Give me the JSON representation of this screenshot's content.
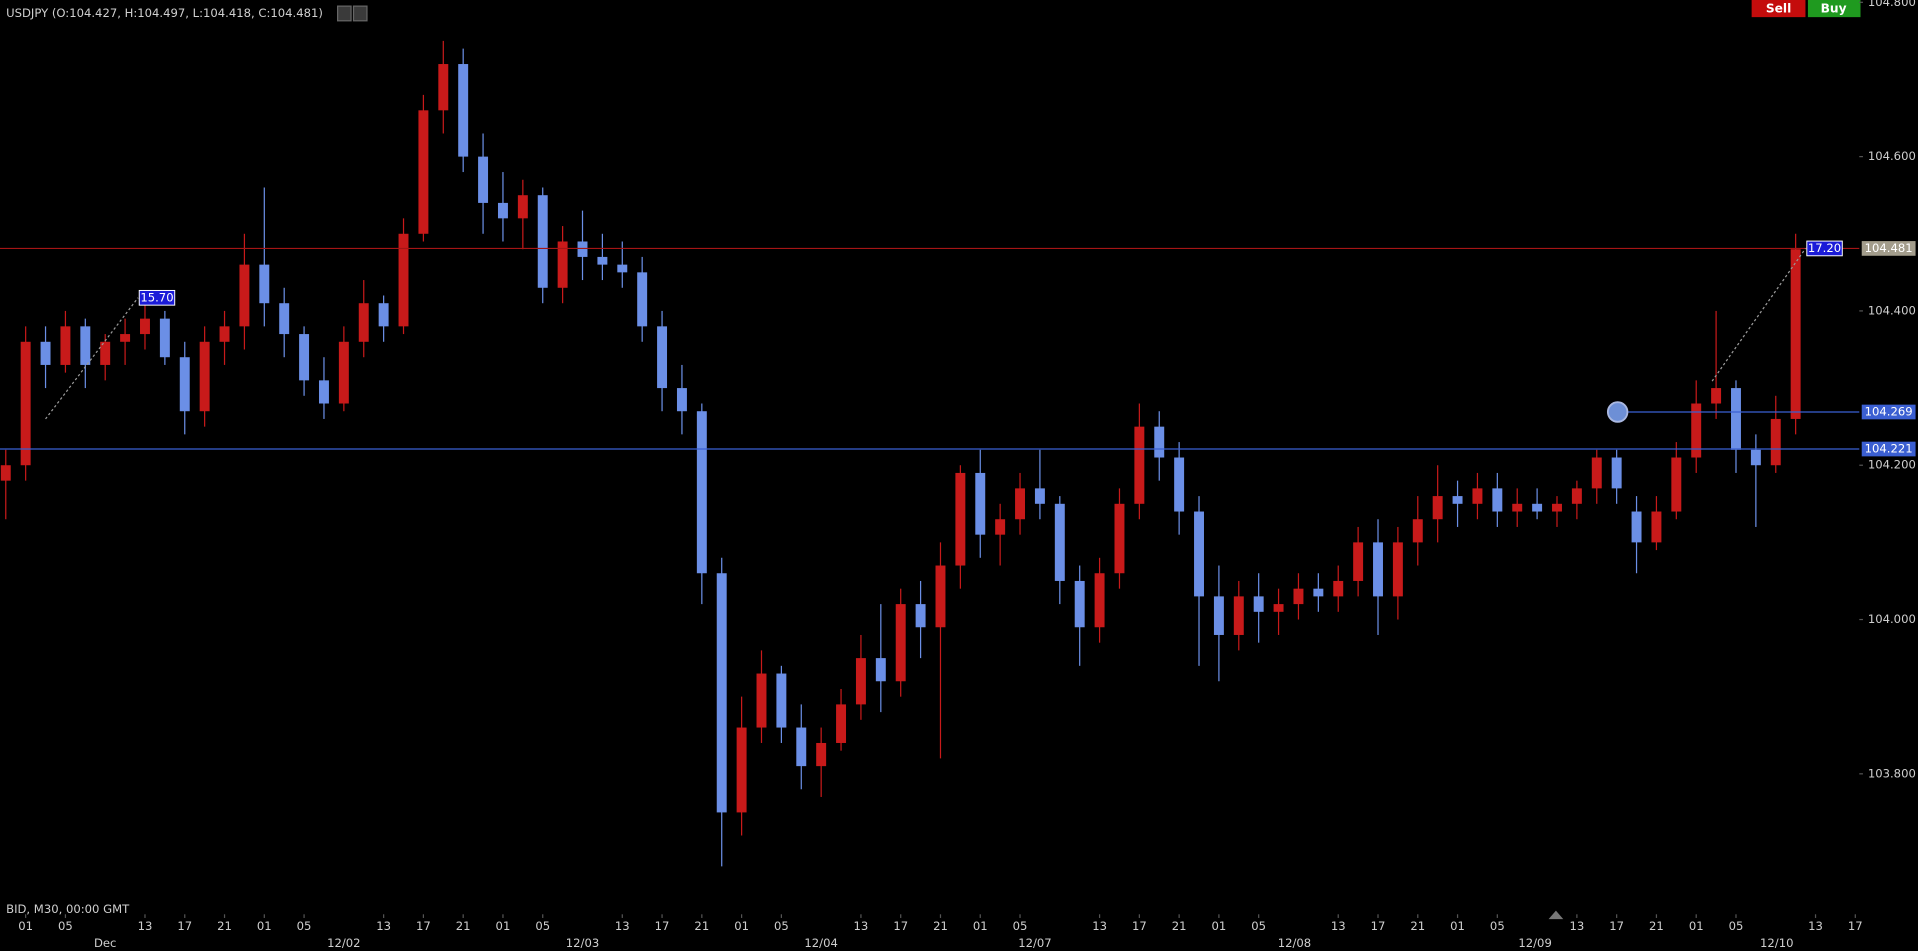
{
  "chart_data": {
    "type": "candlestick",
    "title": "USDJPY (O:104.427, H:104.497, L:104.418, C:104.481)",
    "footnote": "BID, M30, 00:00 GMT",
    "buttons": [
      "Sell",
      "Buy"
    ],
    "up_color": "#c81a1a",
    "down_color": "#6b8fe6",
    "x": [
      -1,
      1,
      3,
      5,
      7,
      9,
      11,
      13,
      15,
      17,
      19,
      21,
      23,
      25,
      27,
      29,
      31,
      33,
      35,
      37,
      39,
      41,
      43,
      45,
      47,
      49,
      51,
      53,
      55,
      57,
      59,
      61,
      63,
      65,
      67,
      69,
      71,
      73,
      75,
      77,
      79,
      81,
      83,
      85,
      87,
      89,
      91,
      93,
      95,
      97,
      99,
      101,
      103,
      105,
      107,
      109,
      111,
      113,
      115,
      117,
      119,
      121,
      123,
      125,
      127,
      129,
      131,
      133,
      135,
      137,
      139,
      141,
      143,
      145,
      147,
      149,
      151,
      153,
      155,
      157,
      159,
      161,
      163,
      165,
      167,
      169,
      171,
      173,
      175,
      177,
      179
    ],
    "open": [
      104.18,
      104.2,
      104.36,
      104.33,
      104.38,
      104.33,
      104.36,
      104.37,
      104.39,
      104.34,
      104.27,
      104.36,
      104.38,
      104.46,
      104.41,
      104.37,
      104.31,
      104.28,
      104.36,
      104.41,
      104.38,
      104.5,
      104.66,
      104.72,
      104.6,
      104.54,
      104.52,
      104.55,
      104.43,
      104.49,
      104.47,
      104.46,
      104.45,
      104.38,
      104.3,
      104.27,
      104.06,
      103.75,
      103.86,
      103.93,
      103.86,
      103.81,
      103.84,
      103.89,
      103.95,
      103.92,
      104.02,
      103.99,
      104.07,
      104.19,
      104.11,
      104.13,
      104.17,
      104.15,
      104.05,
      103.99,
      104.06,
      104.15,
      104.25,
      104.21,
      104.14,
      104.03,
      103.98,
      104.03,
      104.01,
      104.02,
      104.04,
      104.03,
      104.05,
      104.1,
      104.03,
      104.1,
      104.13,
      104.16,
      104.15,
      104.17,
      104.14,
      104.15,
      104.14,
      104.15,
      104.17,
      104.21,
      104.14,
      104.1,
      104.14,
      104.21,
      104.28,
      104.3,
      104.22,
      104.2,
      104.26
    ],
    "high": [
      104.22,
      104.38,
      104.38,
      104.4,
      104.39,
      104.37,
      104.39,
      104.42,
      104.4,
      104.36,
      104.38,
      104.4,
      104.5,
      104.56,
      104.43,
      104.38,
      104.34,
      104.38,
      104.44,
      104.42,
      104.52,
      104.68,
      104.75,
      104.74,
      104.63,
      104.58,
      104.57,
      104.56,
      104.51,
      104.53,
      104.5,
      104.49,
      104.47,
      104.4,
      104.33,
      104.28,
      104.08,
      103.9,
      103.96,
      103.94,
      103.89,
      103.86,
      103.91,
      103.98,
      104.02,
      104.04,
      104.05,
      104.1,
      104.2,
      104.22,
      104.15,
      104.19,
      104.22,
      104.16,
      104.07,
      104.08,
      104.17,
      104.28,
      104.27,
      104.23,
      104.16,
      104.07,
      104.05,
      104.06,
      104.04,
      104.06,
      104.06,
      104.07,
      104.12,
      104.13,
      104.12,
      104.16,
      104.2,
      104.18,
      104.19,
      104.19,
      104.17,
      104.17,
      104.16,
      104.18,
      104.22,
      104.22,
      104.16,
      104.16,
      104.23,
      104.31,
      104.4,
      104.31,
      104.24,
      104.29,
      104.5
    ],
    "low": [
      104.13,
      104.18,
      104.3,
      104.32,
      104.3,
      104.31,
      104.33,
      104.35,
      104.33,
      104.24,
      104.25,
      104.33,
      104.35,
      104.38,
      104.34,
      104.29,
      104.26,
      104.27,
      104.34,
      104.36,
      104.37,
      104.49,
      104.63,
      104.58,
      104.5,
      104.49,
      104.48,
      104.41,
      104.41,
      104.44,
      104.44,
      104.43,
      104.36,
      104.27,
      104.24,
      104.02,
      103.68,
      103.72,
      103.84,
      103.84,
      103.78,
      103.77,
      103.83,
      103.87,
      103.88,
      103.9,
      103.95,
      103.82,
      104.04,
      104.08,
      104.07,
      104.11,
      104.13,
      104.02,
      103.94,
      103.97,
      104.04,
      104.13,
      104.18,
      104.11,
      103.94,
      103.92,
      103.96,
      103.97,
      103.98,
      104.0,
      104.01,
      104.01,
      104.03,
      103.98,
      104.0,
      104.07,
      104.1,
      104.12,
      104.13,
      104.12,
      104.12,
      104.13,
      104.12,
      104.13,
      104.15,
      104.15,
      104.06,
      104.09,
      104.13,
      104.19,
      104.26,
      104.19,
      104.12,
      104.19,
      104.24
    ],
    "close": [
      104.2,
      104.36,
      104.33,
      104.38,
      104.33,
      104.36,
      104.37,
      104.39,
      104.34,
      104.27,
      104.36,
      104.38,
      104.46,
      104.41,
      104.37,
      104.31,
      104.28,
      104.36,
      104.41,
      104.38,
      104.5,
      104.66,
      104.72,
      104.6,
      104.54,
      104.52,
      104.55,
      104.43,
      104.49,
      104.47,
      104.46,
      104.45,
      104.38,
      104.3,
      104.27,
      104.06,
      103.75,
      103.86,
      103.93,
      103.86,
      103.81,
      103.84,
      103.89,
      103.95,
      103.92,
      104.02,
      103.99,
      104.07,
      104.19,
      104.11,
      104.13,
      104.17,
      104.15,
      104.05,
      103.99,
      104.06,
      104.15,
      104.25,
      104.21,
      104.14,
      104.03,
      103.98,
      104.03,
      104.01,
      104.02,
      104.04,
      104.03,
      104.05,
      104.1,
      104.03,
      104.1,
      104.13,
      104.16,
      104.15,
      104.17,
      104.14,
      104.15,
      104.14,
      104.15,
      104.17,
      104.21,
      104.17,
      104.1,
      104.14,
      104.21,
      104.28,
      104.3,
      104.22,
      104.2,
      104.26,
      104.48
    ],
    "xlim": [
      -1.58,
      185.4
    ],
    "ylim": [
      103.637,
      104.803
    ],
    "xticks": [
      {
        "value": 1,
        "label": "01"
      },
      {
        "value": 5,
        "label": "05"
      },
      {
        "value": 13,
        "label": "13"
      },
      {
        "value": 17,
        "label": "17"
      },
      {
        "value": 21,
        "label": "21"
      },
      {
        "value": 25,
        "label": "01"
      },
      {
        "value": 29,
        "label": "05"
      },
      {
        "value": 37,
        "label": "13"
      },
      {
        "value": 41,
        "label": "17"
      },
      {
        "value": 45,
        "label": "21"
      },
      {
        "value": 49,
        "label": "01"
      },
      {
        "value": 53,
        "label": "05"
      },
      {
        "value": 61,
        "label": "13"
      },
      {
        "value": 65,
        "label": "17"
      },
      {
        "value": 69,
        "label": "21"
      },
      {
        "value": 73,
        "label": "01"
      },
      {
        "value": 77,
        "label": "05"
      },
      {
        "value": 85,
        "label": "13"
      },
      {
        "value": 89,
        "label": "17"
      },
      {
        "value": 93,
        "label": "21"
      },
      {
        "value": 97,
        "label": "01"
      },
      {
        "value": 101,
        "label": "05"
      },
      {
        "value": 109,
        "label": "13"
      },
      {
        "value": 113,
        "label": "17"
      },
      {
        "value": 117,
        "label": "21"
      },
      {
        "value": 121,
        "label": "01"
      },
      {
        "value": 125,
        "label": "05"
      },
      {
        "value": 133,
        "label": "13"
      },
      {
        "value": 137,
        "label": "17"
      },
      {
        "value": 141,
        "label": "21"
      },
      {
        "value": 145,
        "label": "01"
      },
      {
        "value": 149,
        "label": "05"
      },
      {
        "value": 157,
        "label": "13"
      },
      {
        "value": 161,
        "label": "17"
      },
      {
        "value": 165,
        "label": "21"
      },
      {
        "value": 169,
        "label": "01"
      },
      {
        "value": 173,
        "label": "05"
      },
      {
        "value": 181,
        "label": "13"
      },
      {
        "value": 185,
        "label": "17"
      }
    ],
    "day_ticks": [
      {
        "value": 9,
        "label": "Dec"
      },
      {
        "value": 33,
        "label": "12/02"
      },
      {
        "value": 57,
        "label": "12/03"
      },
      {
        "value": 81,
        "label": "12/04"
      },
      {
        "value": 102.5,
        "label": "12/07"
      },
      {
        "value": 128.6,
        "label": "12/08"
      },
      {
        "value": 152.8,
        "label": "12/09"
      },
      {
        "value": 177.1,
        "label": "12/10"
      }
    ],
    "yticks": [
      {
        "value": 103.8,
        "label": "103.800"
      },
      {
        "value": 104.0,
        "label": "104.000"
      },
      {
        "value": 104.2,
        "label": "104.200"
      },
      {
        "value": 104.4,
        "label": "104.400"
      },
      {
        "value": 104.6,
        "label": "104.600"
      },
      {
        "value": 104.8,
        "label": "104.800"
      }
    ],
    "price_lines": [
      {
        "value": 104.481,
        "color": "#a51515",
        "tag_color": "#a39d8c"
      },
      {
        "value": 104.269,
        "color": "#3b5fd2",
        "tag_color": "#3b5fd2",
        "from": 161.1
      },
      {
        "value": 104.221,
        "color": "#3b5fd2",
        "tag_color": "#3b5fd2"
      }
    ],
    "measures": [
      {
        "label": "15.70",
        "x": [
          3,
          12.3
        ],
        "y": [
          104.26,
          104.417
        ]
      },
      {
        "label": "17.20",
        "x": [
          170.6,
          180
        ],
        "y": [
          104.309,
          104.481
        ]
      }
    ]
  }
}
